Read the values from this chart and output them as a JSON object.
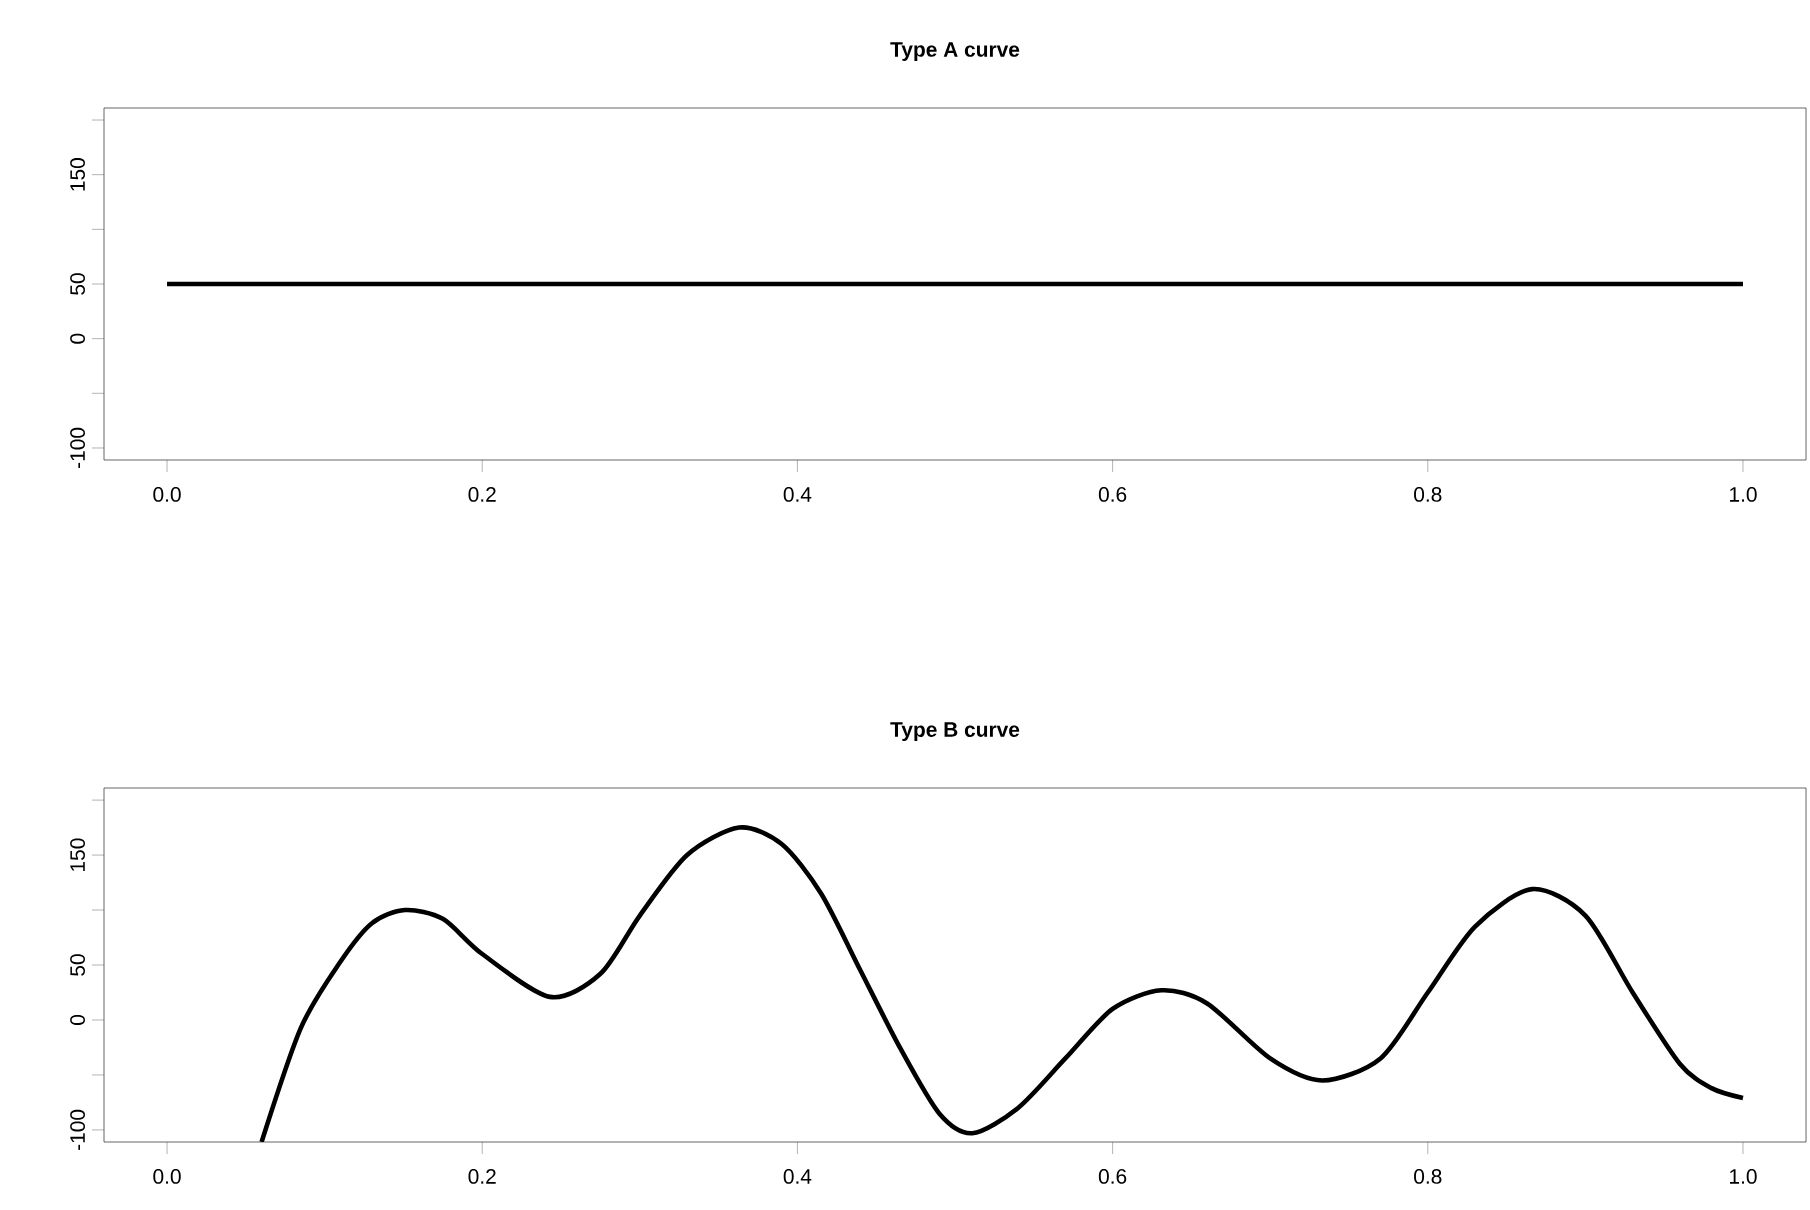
{
  "chart_data": [
    {
      "type": "line",
      "title": "Type A curve",
      "xlim": [
        -0.04,
        1.04
      ],
      "ylim": [
        -111,
        211
      ],
      "xticks": [
        {
          "value": 0,
          "label": "0.0"
        },
        {
          "value": 0.2,
          "label": "0.2"
        },
        {
          "value": 0.4,
          "label": "0.4"
        },
        {
          "value": 0.6,
          "label": "0.6"
        },
        {
          "value": 0.8,
          "label": "0.8"
        },
        {
          "value": 1,
          "label": "1.0"
        }
      ],
      "yticks": [
        -100,
        {
          "value": -50,
          "label": null
        },
        0,
        50,
        {
          "value": 100,
          "label": null
        },
        150,
        {
          "value": 200,
          "label": null
        }
      ],
      "series": [
        {
          "color": "#000000",
          "x": [
            0,
            1
          ],
          "values": [
            50,
            50
          ]
        }
      ]
    },
    {
      "type": "line",
      "title": "Type B curve",
      "xlim": [
        -0.04,
        1.04
      ],
      "ylim": [
        -111,
        211
      ],
      "xticks": [
        {
          "value": 0,
          "label": "0.0"
        },
        {
          "value": 0.2,
          "label": "0.2"
        },
        {
          "value": 0.4,
          "label": "0.4"
        },
        {
          "value": 0.6,
          "label": "0.6"
        },
        {
          "value": 0.8,
          "label": "0.8"
        },
        {
          "value": 1,
          "label": "1.0"
        }
      ],
      "yticks": [
        -100,
        {
          "value": -50,
          "label": null
        },
        0,
        50,
        {
          "value": 100,
          "label": null
        },
        150,
        {
          "value": 200,
          "label": null
        }
      ],
      "series": [
        {
          "color": "#000000",
          "x": [
            0.06,
            0.085,
            0.11,
            0.13,
            0.151,
            0.175,
            0.2,
            0.243,
            0.275,
            0.3,
            0.33,
            0.363,
            0.39,
            0.415,
            0.44,
            0.465,
            0.49,
            0.511,
            0.54,
            0.57,
            0.6,
            0.631,
            0.66,
            0.7,
            0.733,
            0.77,
            0.8,
            0.83,
            0.866,
            0.9,
            0.93,
            0.96,
            0.98,
            1.0
          ],
          "values": [
            -111,
            -7,
            53,
            88,
            100,
            92,
            60,
            21,
            42,
            95,
            150,
            175,
            160,
            115,
            45,
            -25,
            -85,
            -103,
            -80,
            -35,
            10,
            27,
            15,
            -35,
            -55,
            -35,
            25,
            85,
            119,
            95,
            25,
            -40,
            -62,
            -71
          ]
        }
      ]
    }
  ]
}
